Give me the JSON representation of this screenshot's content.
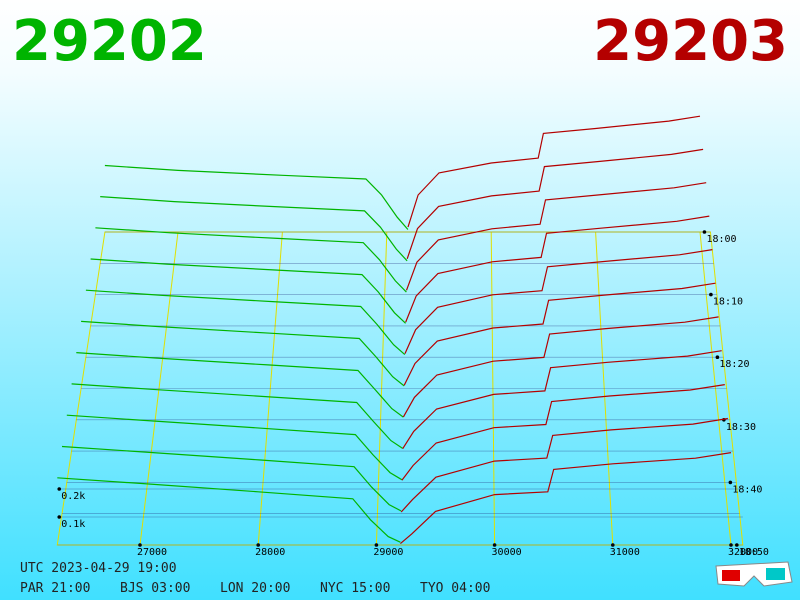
{
  "chart_data": {
    "type": "depth3d",
    "bid_price": 29202,
    "ask_price": 29203,
    "bid_color": "#00b400",
    "ask_color": "#b40000",
    "xlim": [
      26300,
      32100
    ],
    "xticks": [
      27000,
      28000,
      29000,
      30000,
      31000,
      32000
    ],
    "yticks": [
      {
        "value": 100,
        "label": "0.1k"
      },
      {
        "value": 200,
        "label": "0.2k"
      }
    ],
    "times": [
      "18:00",
      null,
      "18:10",
      null,
      "18:20",
      null,
      "18:30",
      null,
      "18:40",
      null,
      "18:50"
    ],
    "bid_prices": [
      26300,
      27000,
      28000,
      28800,
      28950,
      29100,
      29202
    ],
    "ask_prices": [
      29203,
      29300,
      29500,
      30000,
      30450,
      30500,
      31000,
      31700,
      32000
    ],
    "slices": [
      {
        "bids": [
          270,
          250,
          230,
          215,
          150,
          60,
          10
        ],
        "asks": [
          20,
          150,
          240,
          280,
          300,
          400,
          420,
          450,
          470
        ]
      },
      {
        "bids": [
          267,
          247,
          226,
          210,
          144,
          57,
          10
        ],
        "asks": [
          18,
          139,
          228,
          270,
          289,
          387,
          407,
          436,
          456
        ]
      },
      {
        "bids": [
          264,
          244,
          222,
          205,
          138,
          54,
          10
        ],
        "asks": [
          17,
          128,
          216,
          260,
          278,
          374,
          394,
          422,
          442
        ]
      },
      {
        "bids": [
          261,
          241,
          218,
          200,
          132,
          51,
          10
        ],
        "asks": [
          15,
          117,
          204,
          250,
          267,
          361,
          381,
          408,
          428
        ]
      },
      {
        "bids": [
          258,
          238,
          214,
          195,
          126,
          48,
          10
        ],
        "asks": [
          14,
          106,
          192,
          240,
          256,
          348,
          368,
          394,
          414
        ]
      },
      {
        "bids": [
          255,
          235,
          210,
          190,
          120,
          45,
          10
        ],
        "asks": [
          12,
          95,
          180,
          230,
          245,
          335,
          355,
          380,
          400
        ]
      },
      {
        "bids": [
          252,
          232,
          206,
          185,
          114,
          42,
          10
        ],
        "asks": [
          11,
          84,
          168,
          220,
          234,
          322,
          342,
          366,
          386
        ]
      },
      {
        "bids": [
          249,
          229,
          202,
          180,
          108,
          39,
          10
        ],
        "asks": [
          9,
          73,
          156,
          210,
          223,
          309,
          329,
          352,
          372
        ]
      },
      {
        "bids": [
          246,
          226,
          198,
          175,
          102,
          36,
          10
        ],
        "asks": [
          8,
          62,
          144,
          200,
          212,
          296,
          316,
          338,
          358
        ]
      },
      {
        "bids": [
          243,
          223,
          194,
          170,
          96,
          33,
          10
        ],
        "asks": [
          6,
          51,
          132,
          190,
          201,
          283,
          303,
          324,
          344
        ]
      },
      {
        "bids": [
          240,
          220,
          190,
          165,
          90,
          30,
          10
        ],
        "asks": [
          5,
          40,
          120,
          180,
          190,
          270,
          290,
          310,
          330
        ]
      }
    ],
    "utc": "UTC 2023-04-29 19:00",
    "zones": [
      "PAR 21:00",
      "BJS 03:00",
      "LON 20:00",
      "NYC 15:00",
      "TYO 04:00"
    ]
  }
}
